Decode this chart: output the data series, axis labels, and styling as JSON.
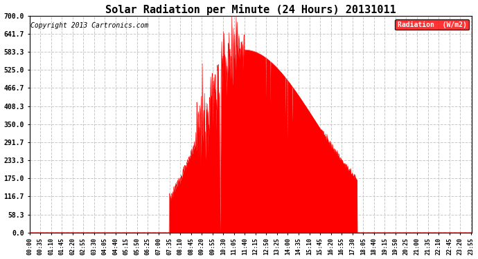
{
  "title": "Solar Radiation per Minute (24 Hours) 20131011",
  "copyright": "Copyright 2013 Cartronics.com",
  "legend_label": "Radiation  (W/m2)",
  "ylabel_values": [
    0.0,
    58.3,
    116.7,
    175.0,
    233.3,
    291.7,
    350.0,
    408.3,
    466.7,
    525.0,
    583.3,
    641.7,
    700.0
  ],
  "ylim": [
    0,
    700
  ],
  "bg_color": "#ffffff",
  "plot_bg_color": "#ffffff",
  "fill_color": "#ff0000",
  "line_color": "#ff0000",
  "grid_color": "#c8c8c8",
  "zero_line_color": "#ff0000",
  "title_fontsize": 11,
  "copyright_fontsize": 7,
  "tick_fontsize": 6,
  "ytick_fontsize": 7
}
